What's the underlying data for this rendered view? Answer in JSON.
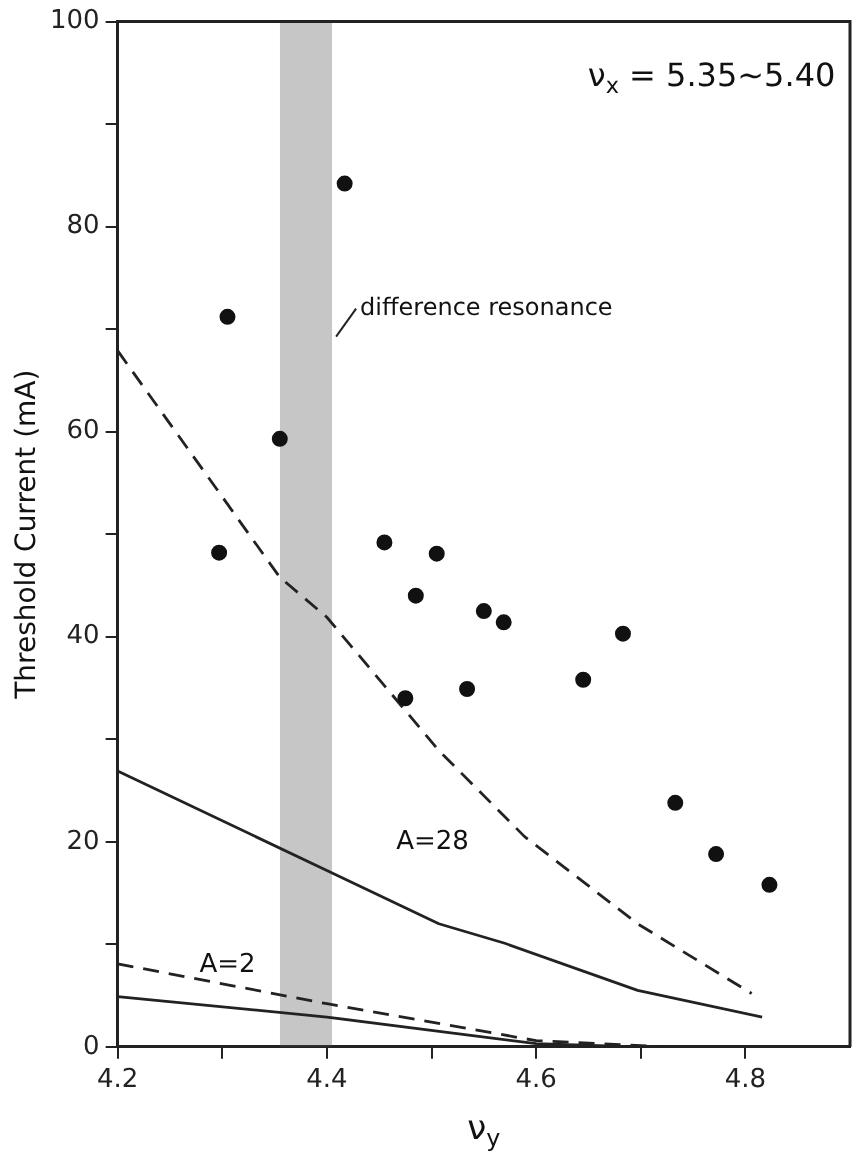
{
  "chart_data": {
    "type": "scatter",
    "xlabel": "ν$_{y}$",
    "ylabel": "Threshold Current (mA)",
    "xlim": [
      4.2,
      4.9
    ],
    "xticks": [
      4.2,
      {
        "value": 4.3,
        "label": null
      },
      4.4,
      {
        "value": 4.5,
        "label": null
      },
      4.6,
      {
        "value": 4.7,
        "label": null
      },
      4.8
    ],
    "ylim": [
      0,
      100
    ],
    "yticks": [
      0,
      {
        "value": 10,
        "label": null
      },
      20,
      {
        "value": 30,
        "label": null
      },
      40,
      {
        "value": 50,
        "label": null
      },
      60,
      {
        "value": 70,
        "label": null
      },
      80,
      {
        "value": 90,
        "label": null
      },
      100
    ],
    "grid": false,
    "legend": false,
    "bands": [
      {
        "axis": "x",
        "from": 4.355,
        "to": 4.405,
        "label": "difference resonance",
        "color": "#555555"
      }
    ],
    "annotations": [
      "ν$_{x}$ = 5.35~5.40",
      "A=28",
      "A=2"
    ],
    "series": [
      {
        "color": "#111111",
        "marker": "circle",
        "x": [
          4.305,
          4.417,
          4.355,
          4.297,
          4.455,
          4.505,
          4.485,
          4.55,
          4.569,
          4.683,
          4.475,
          4.534,
          4.645,
          4.733,
          4.772,
          4.823
        ],
        "values": [
          71.2,
          84.2,
          59.3,
          48.2,
          49.2,
          48.1,
          44.0,
          42.5,
          41.4,
          40.3,
          34.0,
          34.9,
          35.8,
          23.8,
          18.8,
          15.8
        ]
      },
      {
        "type": "line",
        "color": "#222222",
        "marker": "none",
        "line_style": "dashed",
        "x": [
          4.2,
          4.355,
          4.4,
          4.475,
          4.507,
          4.589,
          4.697,
          4.806
        ],
        "values": [
          67.9,
          45.8,
          41.9,
          32.8,
          28.9,
          20.5,
          12.0,
          5.2
        ]
      },
      {
        "type": "line",
        "color": "#222222",
        "marker": "none",
        "line_style": "solid",
        "x": [
          4.2,
          4.4,
          4.507,
          4.57,
          4.697,
          4.816
        ],
        "values": [
          26.9,
          17.2,
          12.0,
          10.1,
          5.5,
          2.9
        ]
      },
      {
        "type": "line",
        "color": "#222222",
        "marker": "none",
        "line_style": "dashed",
        "x": [
          4.2,
          4.4,
          4.6,
          4.723
        ],
        "values": [
          8.1,
          4.2,
          0.6,
          0
        ]
      },
      {
        "type": "line",
        "color": "#222222",
        "marker": "none",
        "line_style": "solid",
        "x": [
          4.2,
          4.4,
          4.6,
          4.697
        ],
        "values": [
          4.9,
          2.9,
          0.3,
          0
        ]
      }
    ]
  }
}
